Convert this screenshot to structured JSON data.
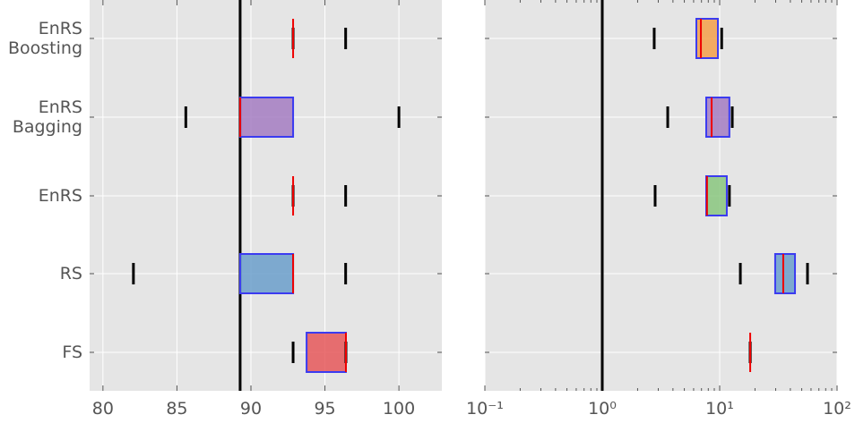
{
  "chart_data": [
    {
      "type": "boxplot",
      "xscale": "linear",
      "categories": [
        "EnRS\nBoosting",
        "EnRS\nBagging",
        "EnRS",
        "RS",
        "FS"
      ],
      "boxes": [
        {
          "whislo": 92.85,
          "q1": 92.85,
          "med": 92.85,
          "q3": 92.85,
          "whishi": 96.4
        },
        {
          "whislo": 85.6,
          "q1": 89.27,
          "med": 89.27,
          "q3": 92.85,
          "whishi": 100
        },
        {
          "whislo": 92.85,
          "q1": 92.85,
          "med": 92.85,
          "q3": 92.85,
          "whishi": 96.4
        },
        {
          "whislo": 82.06,
          "q1": 89.27,
          "med": 92.85,
          "q3": 92.85,
          "whishi": 96.4
        },
        {
          "whislo": 92.85,
          "q1": 93.76,
          "med": 96.42,
          "q3": 96.42,
          "whishi": 96.42
        }
      ],
      "colors": [
        "#f5a04a",
        "#a47cc2",
        "#8ac77f",
        "#6b9fcb",
        "#e6585b"
      ],
      "vline": 89.27,
      "xlim": [
        79.1,
        102.9
      ],
      "xticks": [
        80,
        85,
        90,
        95,
        100
      ],
      "grid": true
    },
    {
      "type": "boxplot",
      "xscale": "log",
      "boxes": [
        {
          "whislo": 2.77,
          "q1": 6.33,
          "med": 6.92,
          "q3": 9.66,
          "whishi": 10.4
        },
        {
          "whislo": 3.61,
          "q1": 7.68,
          "med": 8.54,
          "q3": 12.1,
          "whishi": 12.8
        },
        {
          "whislo": 2.82,
          "q1": 7.68,
          "med": 7.8,
          "q3": 11.5,
          "whishi": 12.1
        },
        {
          "whislo": 15.0,
          "q1": 29.7,
          "med": 34.8,
          "q3": 43.8,
          "whishi": 56.0
        },
        {
          "whislo": 18.2,
          "q1": 18.2,
          "med": 18.2,
          "q3": 18.2,
          "whishi": 18.2
        }
      ],
      "colors": [
        "#f5a04a",
        "#a47cc2",
        "#8ac77f",
        "#6b9fcb",
        "#e6585b"
      ],
      "vline": 1,
      "xlim": [
        0.1,
        100
      ],
      "xticks": [
        {
          "value": 0.1,
          "label": "10⁻¹"
        },
        {
          "value": 1,
          "label": "10⁰"
        },
        {
          "value": 10,
          "label": "10¹"
        },
        {
          "value": 100,
          "label": "10²"
        }
      ],
      "minor_xticks": [
        0.2,
        0.3,
        0.4,
        0.5,
        0.6,
        0.7,
        0.8,
        0.9,
        2,
        3,
        4,
        5,
        6,
        7,
        8,
        9,
        20,
        30,
        40,
        50,
        60,
        70,
        80,
        90
      ],
      "grid": true
    }
  ]
}
